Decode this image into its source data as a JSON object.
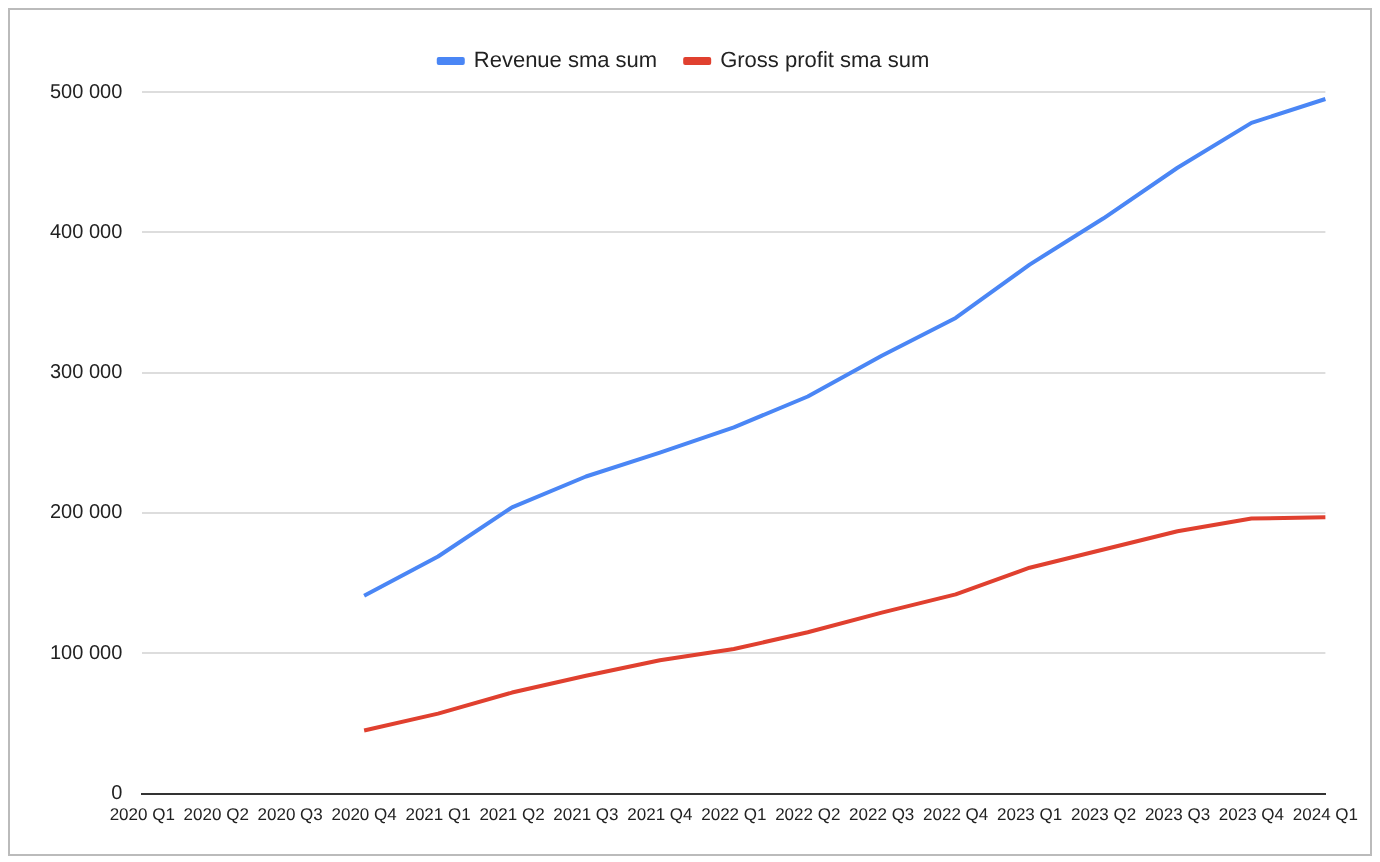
{
  "chart_data": {
    "type": "line",
    "categories": [
      "2020 Q1",
      "2020 Q2",
      "2020 Q3",
      "2020 Q4",
      "2021 Q1",
      "2021 Q2",
      "2021 Q3",
      "2021 Q4",
      "2022 Q1",
      "2022 Q2",
      "2022 Q3",
      "2022 Q4",
      "2023 Q1",
      "2023 Q2",
      "2023 Q3",
      "2023 Q4",
      "2024 Q1"
    ],
    "series": [
      {
        "name": "Revenue sma sum",
        "color": "#4a86f5",
        "values": [
          null,
          null,
          null,
          141000,
          169000,
          204000,
          226000,
          243000,
          261000,
          283000,
          312000,
          339000,
          377000,
          410000,
          446000,
          478000,
          495000
        ]
      },
      {
        "name": "Gross profit sma sum",
        "color": "#e0402f",
        "values": [
          null,
          null,
          null,
          45000,
          57000,
          72000,
          84000,
          95000,
          103000,
          115000,
          129000,
          142000,
          161000,
          174000,
          187000,
          196000,
          197000
        ]
      }
    ],
    "ylim": [
      0,
      500000
    ],
    "yticks": [
      {
        "value": 0,
        "label": "0"
      },
      {
        "value": 100000,
        "label": "100 000"
      },
      {
        "value": 200000,
        "label": "200 000"
      },
      {
        "value": 300000,
        "label": "300 000"
      },
      {
        "value": 400000,
        "label": "400 000"
      },
      {
        "value": 500000,
        "label": "500 000"
      }
    ],
    "grid": "y",
    "legend": "top",
    "marker": "none"
  }
}
